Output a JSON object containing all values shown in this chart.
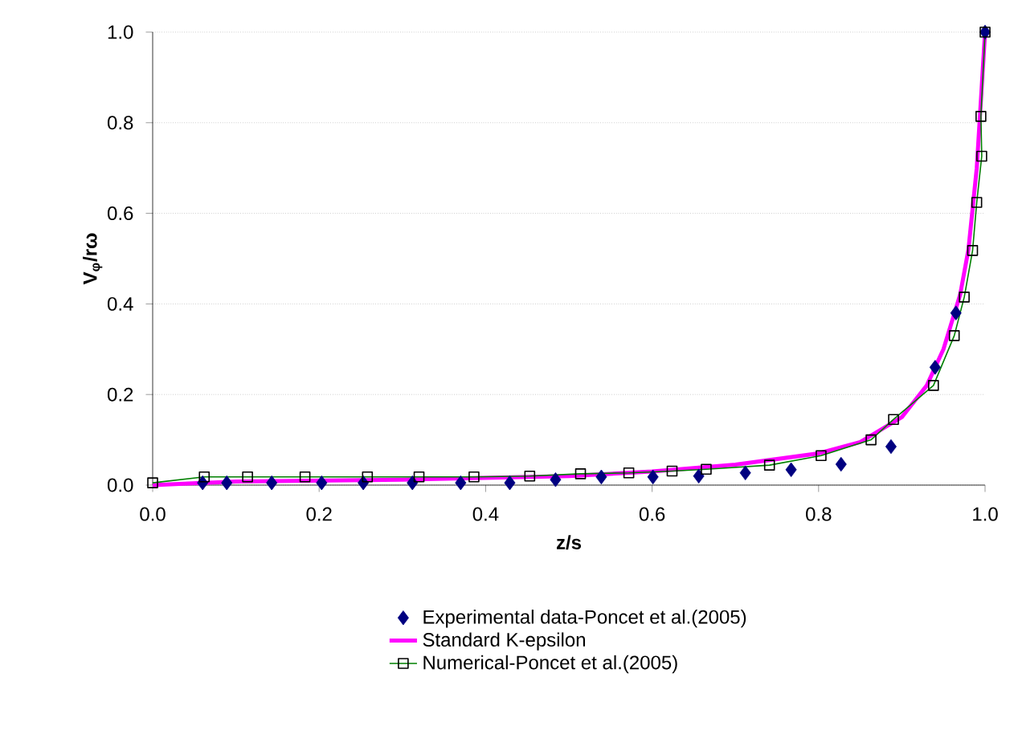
{
  "chart_data": {
    "type": "line",
    "xlabel": "z/s",
    "ylabel": "V$_{φ}$/rω",
    "xlim": [
      0,
      1
    ],
    "ylim": [
      0,
      1
    ],
    "xticks": [
      {
        "value": 0,
        "label": "0.0"
      },
      {
        "value": 0.2,
        "label": "0.2"
      },
      {
        "value": 0.4,
        "label": "0.4"
      },
      {
        "value": 0.6,
        "label": "0.6"
      },
      {
        "value": 0.8,
        "label": "0.8"
      },
      {
        "value": 1,
        "label": "1.0"
      }
    ],
    "yticks": [
      {
        "value": 0,
        "label": "0.0"
      },
      {
        "value": 0.2,
        "label": "0.2"
      },
      {
        "value": 0.4,
        "label": "0.4"
      },
      {
        "value": 0.6,
        "label": "0.6"
      },
      {
        "value": 0.8,
        "label": "0.8"
      },
      {
        "value": 1,
        "label": "1.0"
      }
    ],
    "grid": "y",
    "legend": "bottom",
    "series": [
      {
        "name": "Experimental data-Poncet et al.(2005)",
        "type": "scatter",
        "marker": "diamond",
        "color": "#000080",
        "x": [
          0.06,
          0.089,
          0.143,
          0.203,
          0.253,
          0.312,
          0.37,
          0.429,
          0.484,
          0.539,
          0.601,
          0.656,
          0.712,
          0.767,
          0.827,
          0.887,
          0.94,
          0.965,
          1.0
        ],
        "values": [
          0.005,
          0.005,
          0.005,
          0.005,
          0.005,
          0.005,
          0.005,
          0.005,
          0.012,
          0.018,
          0.018,
          0.02,
          0.027,
          0.034,
          0.046,
          0.085,
          0.26,
          0.38,
          1.0
        ]
      },
      {
        "name": "Standard K-epsilon",
        "marker": "none",
        "color": "#ff00ff",
        "x": [
          0,
          0.1,
          0.3,
          0.5,
          0.6,
          0.7,
          0.8,
          0.85,
          0.9,
          0.93,
          0.95,
          0.97,
          0.98,
          0.99,
          1.0
        ],
        "values": [
          0.0,
          0.008,
          0.012,
          0.02,
          0.03,
          0.045,
          0.07,
          0.095,
          0.15,
          0.22,
          0.3,
          0.42,
          0.52,
          0.7,
          1.0
        ]
      },
      {
        "name": "Numerical-Poncet et al.(2005)",
        "marker": "square",
        "color": "#008000",
        "x": [
          0.0,
          0.062,
          0.114,
          0.183,
          0.258,
          0.32,
          0.386,
          0.453,
          0.514,
          0.572,
          0.624,
          0.665,
          0.741,
          0.803,
          0.863,
          0.89,
          0.938,
          0.963,
          0.975,
          0.985,
          0.99,
          0.996,
          0.995,
          1.0
        ],
        "values": [
          0.005,
          0.018,
          0.018,
          0.018,
          0.018,
          0.018,
          0.018,
          0.02,
          0.025,
          0.027,
          0.031,
          0.035,
          0.044,
          0.065,
          0.1,
          0.145,
          0.22,
          0.33,
          0.415,
          0.518,
          0.624,
          0.726,
          0.814,
          1.0
        ]
      }
    ]
  }
}
